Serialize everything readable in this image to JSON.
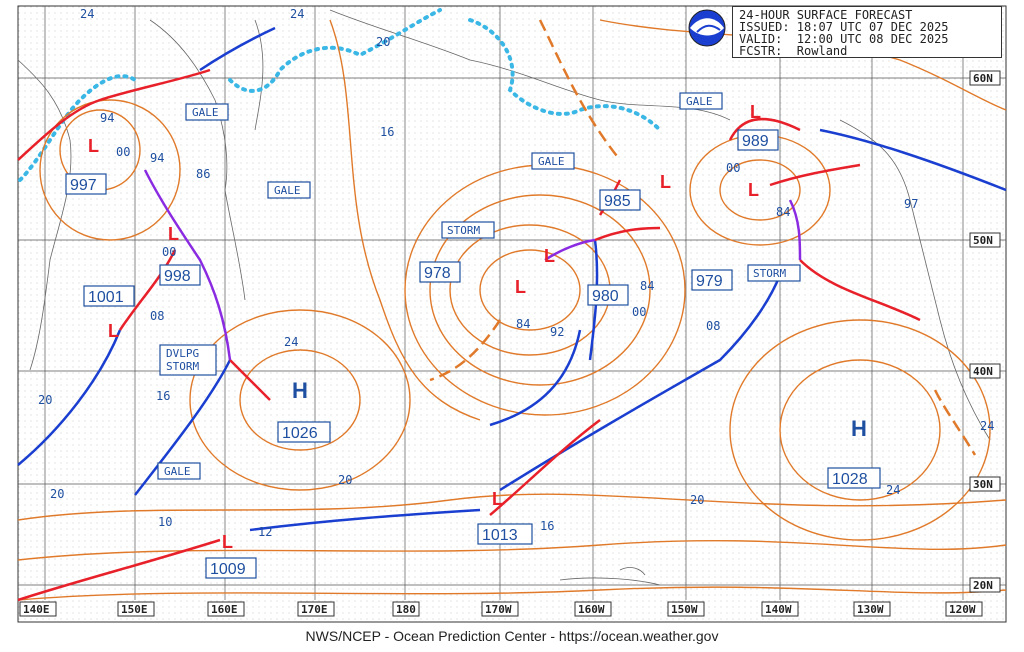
{
  "header": {
    "title": "24-HOUR SURFACE FORECAST",
    "issued": "ISSUED: 18:07 UTC 07 DEC 2025",
    "valid": "VALID:  12:00 UTC 08 DEC 2025",
    "forecaster": "FCSTR:  Rowland"
  },
  "footer": "NWS/NCEP - Ocean Prediction Center - https://ocean.weather.gov",
  "lon_labels": [
    "140E",
    "150E",
    "160E",
    "170E",
    "180",
    "170W",
    "160W",
    "150W",
    "140W",
    "130W",
    "120W"
  ],
  "lat_labels": [
    "60N",
    "50N",
    "40N",
    "30N",
    "20N"
  ],
  "warnings": [
    {
      "text": "GALE"
    },
    {
      "text": "GALE"
    },
    {
      "text": "GALE"
    },
    {
      "text": "STORM"
    },
    {
      "text": "GALE"
    },
    {
      "text": "STORM"
    },
    {
      "text": "DVLPG"
    },
    {
      "text": "STORM"
    },
    {
      "text": "GALE"
    }
  ],
  "centers": [
    {
      "type": "H",
      "pressure": "1026"
    },
    {
      "type": "H",
      "pressure": "1028"
    },
    {
      "type": "L",
      "pressure": "978"
    },
    {
      "type": "L",
      "pressure": "980"
    },
    {
      "type": "L",
      "pressure": "979"
    },
    {
      "type": "L",
      "pressure": "985"
    },
    {
      "type": "L",
      "pressure": "989"
    },
    {
      "type": "L",
      "pressure": "997"
    },
    {
      "type": "L",
      "pressure": "998"
    },
    {
      "type": "L",
      "pressure": "1001"
    },
    {
      "type": "L",
      "pressure": "1009"
    },
    {
      "type": "L",
      "pressure": "1013"
    }
  ],
  "isobar_labels": [
    "24",
    "24",
    "20",
    "16",
    "94",
    "00",
    "94",
    "86",
    "00",
    "08",
    "24",
    "16",
    "20",
    "20",
    "10",
    "12",
    "84",
    "92",
    "84",
    "00",
    "08",
    "20",
    "16",
    "20",
    "24",
    "97",
    "84",
    "00",
    "24"
  ],
  "colors": {
    "isobar": "#e07a2a",
    "warm": "#e8202a",
    "cold": "#1a3fd0",
    "occluded": "#8a2be2",
    "text": "#1f4fa0",
    "ice": "#3bb7e6"
  }
}
